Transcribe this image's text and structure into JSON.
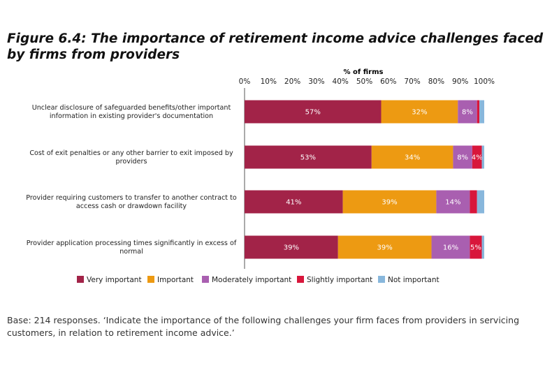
{
  "title": "Figure 6.4: The importance of retirement income advice challenges faced by firms from providers",
  "footnote": "Base: 214 responses. ‘Indicate the importance of the following challenges your firm faces from providers in servicing customers, in relation to retirement income advice.’",
  "colors": {
    "Very important": "#a22348",
    "Important": "#ed9a12",
    "Moderately important": "#a95fb0",
    "Slightly important": "#d8163b",
    "Not important": "#88b7dc"
  },
  "chart_data": {
    "type": "bar",
    "orientation": "horizontal",
    "stacked": true,
    "xlabel": "% of firms",
    "xlim": [
      0,
      100
    ],
    "x_ticks": [
      "0%",
      "10%",
      "20%",
      "30%",
      "40%",
      "50%",
      "60%",
      "70%",
      "80%",
      "90%",
      "100%"
    ],
    "categories": [
      [
        "Unclear disclosure of safeguarded benefits/other important",
        "information in existing provider's documentation"
      ],
      [
        "Cost of exit penalties or any other barrier to exit imposed by",
        "providers"
      ],
      [
        "Provider requiring customers to transfer to another contract to",
        "access cash or drawdown facility"
      ],
      [
        "Provider application processing times significantly in excess of",
        "normal"
      ]
    ],
    "series": [
      {
        "name": "Very important",
        "values": [
          57,
          53,
          41,
          39
        ],
        "labels": [
          "57%",
          "53%",
          "41%",
          "39%"
        ]
      },
      {
        "name": "Important",
        "values": [
          32,
          34,
          39,
          39
        ],
        "labels": [
          "32%",
          "34%",
          "39%",
          "39%"
        ]
      },
      {
        "name": "Moderately important",
        "values": [
          8,
          8,
          14,
          16
        ],
        "labels": [
          "8%",
          "8%",
          "14%",
          "16%"
        ]
      },
      {
        "name": "Slightly important",
        "values": [
          1,
          4,
          3,
          5
        ],
        "labels": [
          "",
          "4%",
          "",
          "5%"
        ]
      },
      {
        "name": "Not important",
        "values": [
          2,
          1,
          3,
          1
        ],
        "labels": [
          "",
          "",
          "",
          ""
        ]
      }
    ],
    "legend_position": "bottom",
    "grid": false
  }
}
